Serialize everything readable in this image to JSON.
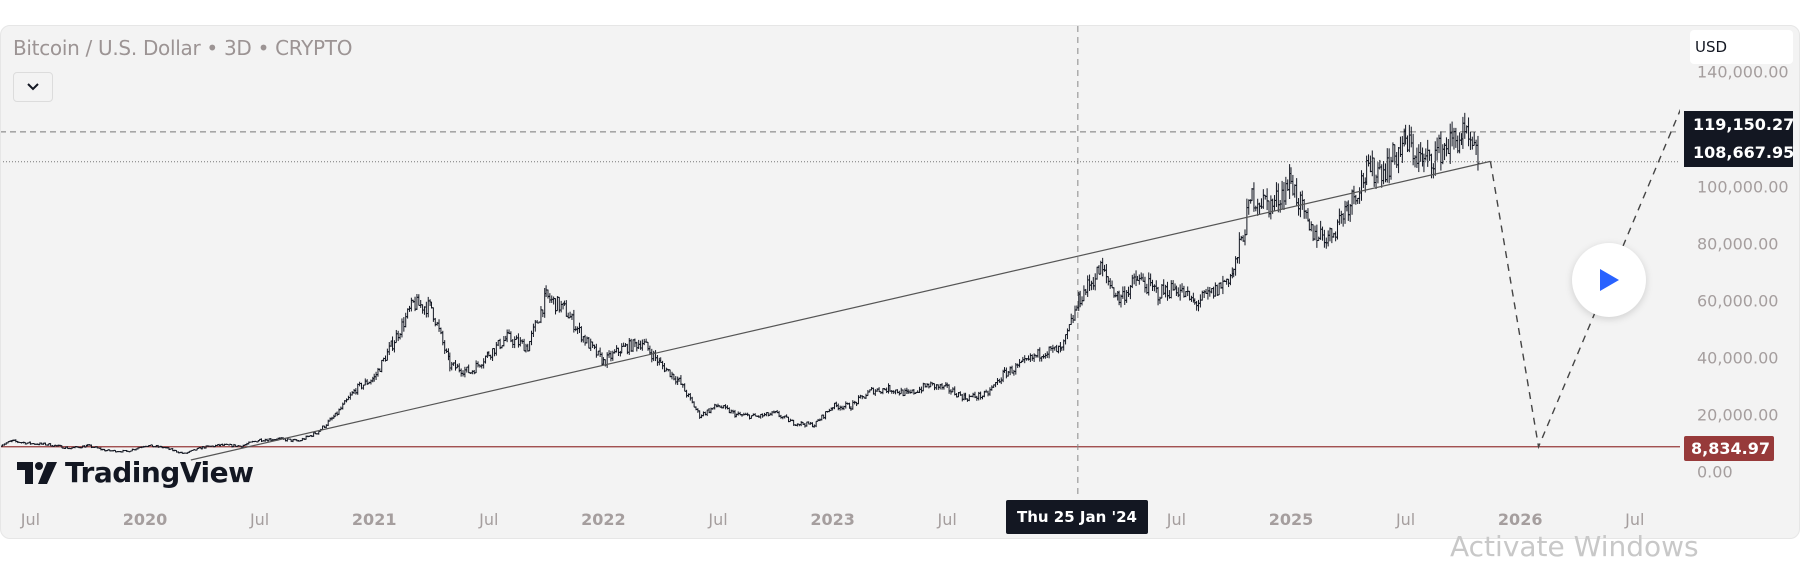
{
  "header": {
    "title": "Bitcoin / U.S. Dollar • 3D • CRYPTO",
    "currency": "USD"
  },
  "colors": {
    "bars": "#131722",
    "trend": "#555555",
    "support": "#973a3a",
    "play": "#2962ff",
    "label_bg": "#131722"
  },
  "price_labels": {
    "high": "119,150.27",
    "current": "108,667.95",
    "support": "8,834.97"
  },
  "crosshair_label": "Thu 25 Jan '24",
  "logo_text": "TradingView",
  "watermark": "Activate Windows",
  "chart_data": {
    "type": "ohlc",
    "title": "Bitcoin / U.S. Dollar • 3D • CRYPTO",
    "interval": "3D",
    "ylim": [
      0,
      140000
    ],
    "xlim": [
      2019.37,
      2026.97
    ],
    "y_ticks": [
      "140,000.00",
      "100,000.00",
      "80,000.00",
      "60,000.00",
      "40,000.00",
      "20,000.00",
      "0.00"
    ],
    "y_tick_values": [
      140000,
      100000,
      80000,
      60000,
      40000,
      20000,
      0
    ],
    "x_ticks": [
      {
        "label": "Jul",
        "t": 2019.5
      },
      {
        "label": "2020",
        "t": 2020.0,
        "year": true
      },
      {
        "label": "Jul",
        "t": 2020.5
      },
      {
        "label": "2021",
        "t": 2021.0,
        "year": true
      },
      {
        "label": "Jul",
        "t": 2021.5
      },
      {
        "label": "2022",
        "t": 2022.0,
        "year": true
      },
      {
        "label": "Jul",
        "t": 2022.5
      },
      {
        "label": "2023",
        "t": 2023.0,
        "year": true
      },
      {
        "label": "Jul",
        "t": 2023.5
      },
      {
        "label": "Jul",
        "t": 2024.5
      },
      {
        "label": "2025",
        "t": 2025.0,
        "year": true
      },
      {
        "label": "Jul",
        "t": 2025.5
      },
      {
        "label": "2026",
        "t": 2026.0,
        "year": true
      },
      {
        "label": "Jul",
        "t": 2026.5
      }
    ],
    "monthly_prices": [
      [
        2019.37,
        9500
      ],
      [
        2019.42,
        10800
      ],
      [
        2019.5,
        10000
      ],
      [
        2019.58,
        9600
      ],
      [
        2019.67,
        8300
      ],
      [
        2019.75,
        9200
      ],
      [
        2019.83,
        7500
      ],
      [
        2019.92,
        7200
      ],
      [
        2020.0,
        9300
      ],
      [
        2020.08,
        8600
      ],
      [
        2020.17,
        6400
      ],
      [
        2020.25,
        8600
      ],
      [
        2020.33,
        9400
      ],
      [
        2020.42,
        9100
      ],
      [
        2020.5,
        11300
      ],
      [
        2020.58,
        11600
      ],
      [
        2020.67,
        10800
      ],
      [
        2020.75,
        13800
      ],
      [
        2020.83,
        19700
      ],
      [
        2020.92,
        29000
      ],
      [
        2021.0,
        33000
      ],
      [
        2021.08,
        45000
      ],
      [
        2021.17,
        58800
      ],
      [
        2021.25,
        57700
      ],
      [
        2021.33,
        37300
      ],
      [
        2021.42,
        35000
      ],
      [
        2021.5,
        41500
      ],
      [
        2021.58,
        47000
      ],
      [
        2021.67,
        43800
      ],
      [
        2021.75,
        61300
      ],
      [
        2021.83,
        57000
      ],
      [
        2021.92,
        46300
      ],
      [
        2022.0,
        38500
      ],
      [
        2022.08,
        43200
      ],
      [
        2022.17,
        45500
      ],
      [
        2022.25,
        37700
      ],
      [
        2022.33,
        31800
      ],
      [
        2022.42,
        19800
      ],
      [
        2022.5,
        23300
      ],
      [
        2022.58,
        20000
      ],
      [
        2022.67,
        19400
      ],
      [
        2022.75,
        20500
      ],
      [
        2022.83,
        17200
      ],
      [
        2022.92,
        16500
      ],
      [
        2023.0,
        23100
      ],
      [
        2023.08,
        23100
      ],
      [
        2023.17,
        28500
      ],
      [
        2023.25,
        29200
      ],
      [
        2023.33,
        27200
      ],
      [
        2023.42,
        30500
      ],
      [
        2023.5,
        29200
      ],
      [
        2023.58,
        26000
      ],
      [
        2023.67,
        27000
      ],
      [
        2023.75,
        34500
      ],
      [
        2023.83,
        37700
      ],
      [
        2023.92,
        42300
      ],
      [
        2024.0,
        42600
      ],
      [
        2024.08,
        61200
      ],
      [
        2024.17,
        71300
      ],
      [
        2024.25,
        60600
      ],
      [
        2024.33,
        67500
      ],
      [
        2024.42,
        62700
      ],
      [
        2024.5,
        64600
      ],
      [
        2024.58,
        59000
      ],
      [
        2024.67,
        63300
      ],
      [
        2024.75,
        70200
      ],
      [
        2024.83,
        96400
      ],
      [
        2024.92,
        93400
      ],
      [
        2025.0,
        102400
      ],
      [
        2025.08,
        84300
      ],
      [
        2025.17,
        82500
      ],
      [
        2025.25,
        94200
      ],
      [
        2025.33,
        104600
      ],
      [
        2025.42,
        107100
      ],
      [
        2025.5,
        115700
      ],
      [
        2025.58,
        108200
      ],
      [
        2025.67,
        114000
      ],
      [
        2025.75,
        118000
      ],
      [
        2025.82,
        108668
      ]
    ],
    "horizontal_lines": [
      {
        "price": 119150.27,
        "style": "dashed"
      },
      {
        "price": 108667.95,
        "style": "dotted"
      },
      {
        "price": 8834.97,
        "style": "solid",
        "color": "#973a3a"
      }
    ],
    "trendline": [
      [
        2020.2,
        4200
      ],
      [
        2025.87,
        108800
      ]
    ],
    "projection_path": [
      [
        2025.87,
        108800
      ],
      [
        2026.08,
        8835
      ],
      [
        2026.71,
        129000
      ]
    ],
    "crosshair_t": 2024.07
  }
}
